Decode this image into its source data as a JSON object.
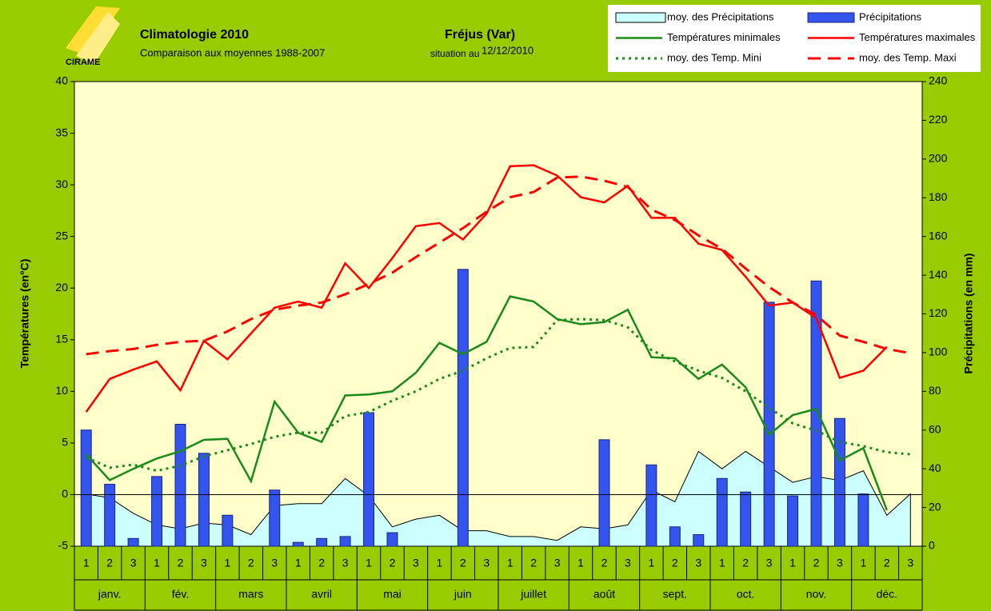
{
  "chart_data": {
    "type": "combo",
    "title": "Climatologie 2010",
    "subtitle": "Comparaison aux moyennes 1988-2007",
    "station": "Fréjus (Var)",
    "date_caption": "situation au",
    "date": "12/12/2010",
    "logo": "CIRAME",
    "y_label": "Températures (en°C)",
    "y2_label": "Précipitations (en mm)",
    "categories": [
      "1",
      "2",
      "3",
      "1",
      "2",
      "3",
      "1",
      "2",
      "3",
      "1",
      "2",
      "3",
      "1",
      "2",
      "3",
      "1",
      "2",
      "3",
      "1",
      "2",
      "3",
      "1",
      "2",
      "3",
      "1",
      "2",
      "3",
      "1",
      "2",
      "3",
      "1",
      "2",
      "3",
      "1",
      "2",
      "3"
    ],
    "months": [
      "janv.",
      "fév.",
      "mars",
      "avril",
      "mai",
      "juin",
      "juillet",
      "août",
      "sept.",
      "oct.",
      "nov.",
      "déc."
    ],
    "ylim": [
      -5,
      40
    ],
    "yticks": [
      -5,
      0,
      5,
      10,
      15,
      20,
      25,
      30,
      35,
      40
    ],
    "y2lim": [
      0,
      240
    ],
    "y2ticks": [
      0,
      20,
      40,
      60,
      80,
      100,
      120,
      140,
      160,
      180,
      200,
      220,
      240
    ],
    "series": [
      {
        "name": "moy. des Précipitations",
        "kind": "area",
        "axis": "y2",
        "color": "#ccffff",
        "values": [
          27,
          25,
          17,
          11,
          9,
          12,
          11,
          6,
          21,
          22,
          22,
          35,
          26,
          10,
          14,
          16,
          8,
          8,
          5,
          5,
          3,
          10,
          9,
          11,
          29,
          23,
          49,
          40,
          49,
          41,
          33,
          36,
          34,
          39,
          16,
          27
        ]
      },
      {
        "name": "Précipitations",
        "kind": "bar",
        "axis": "y2",
        "color": "#3355ee",
        "values": [
          60,
          32,
          4,
          36,
          63,
          48,
          16,
          0,
          29,
          2,
          4,
          5,
          69,
          7,
          0,
          0,
          143,
          0,
          0,
          0,
          0,
          0,
          55,
          0,
          42,
          10,
          6,
          35,
          28,
          126,
          26,
          137,
          66,
          27,
          0,
          0
        ]
      },
      {
        "name": "Températures minimales",
        "kind": "line",
        "dash": "solid",
        "axis": "y",
        "color": "#1a8a1a",
        "values": [
          3.9,
          1.4,
          2.5,
          3.5,
          4.2,
          5.3,
          5.4,
          1.3,
          9.0,
          6.0,
          5.1,
          9.6,
          9.7,
          10.0,
          11.8,
          14.7,
          13.6,
          14.8,
          19.2,
          18.7,
          17.0,
          16.5,
          16.7,
          17.9,
          13.3,
          13.2,
          11.2,
          12.6,
          10.4,
          5.8,
          7.7,
          8.3,
          3.3,
          4.5,
          -1.5,
          null
        ]
      },
      {
        "name": "Températures maximales",
        "kind": "line",
        "dash": "solid",
        "axis": "y",
        "color": "#ff0000",
        "values": [
          8.0,
          11.2,
          12.1,
          12.9,
          10.1,
          14.9,
          13.1,
          15.6,
          18.1,
          18.7,
          18.1,
          22.4,
          20.0,
          22.9,
          26.0,
          26.3,
          24.7,
          27.2,
          31.8,
          31.9,
          30.9,
          28.8,
          28.3,
          29.9,
          26.8,
          26.8,
          24.3,
          23.7,
          21.1,
          18.3,
          18.6,
          17.1,
          11.3,
          12.0,
          14.3,
          null
        ]
      },
      {
        "name": "moy. des Temp. Mini",
        "kind": "line",
        "dash": "dotted",
        "axis": "y",
        "color": "#1a8a1a",
        "values": [
          3.6,
          2.6,
          2.9,
          2.3,
          2.8,
          3.7,
          4.3,
          4.9,
          5.6,
          6.0,
          6.0,
          7.6,
          8.0,
          9.1,
          10.0,
          11.2,
          12.0,
          13.2,
          14.2,
          14.3,
          16.9,
          17.0,
          16.9,
          16.2,
          14.0,
          12.9,
          12.0,
          11.3,
          10.0,
          8.4,
          6.9,
          6.2,
          5.1,
          4.7,
          4.1,
          3.9
        ]
      },
      {
        "name": "moy. des Temp. Maxi",
        "kind": "line",
        "dash": "dashed",
        "axis": "y",
        "color": "#ff0000",
        "values": [
          13.6,
          13.9,
          14.1,
          14.5,
          14.8,
          14.9,
          15.8,
          17.0,
          17.9,
          18.3,
          18.6,
          19.4,
          20.4,
          21.5,
          23.0,
          24.4,
          25.8,
          27.4,
          28.8,
          29.3,
          30.7,
          30.8,
          30.4,
          29.8,
          27.6,
          26.6,
          25.1,
          23.8,
          21.9,
          20.1,
          18.6,
          17.4,
          15.4,
          14.8,
          14.1,
          13.7
        ]
      }
    ]
  }
}
